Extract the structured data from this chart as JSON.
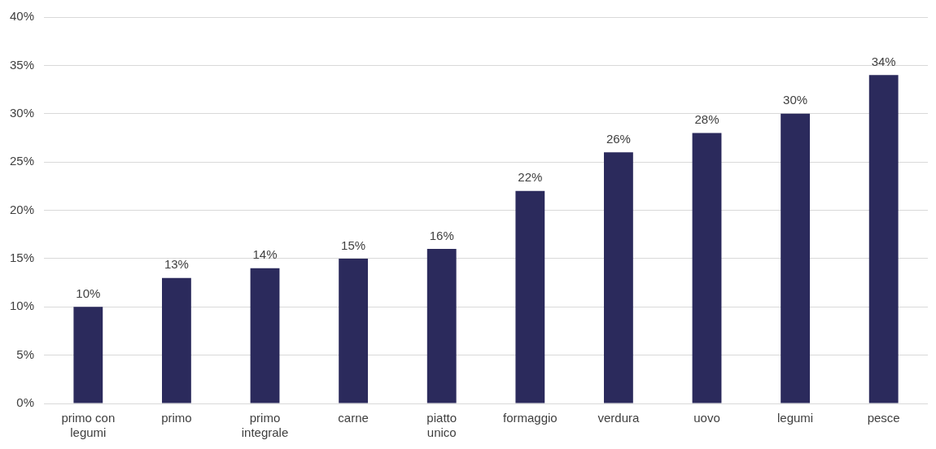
{
  "chart_data": {
    "type": "bar",
    "categories": [
      "primo con legumi",
      "primo",
      "primo integrale",
      "carne",
      "piatto unico",
      "formaggio",
      "verdura",
      "uovo",
      "legumi",
      "pesce"
    ],
    "values": [
      10,
      13,
      14,
      15,
      16,
      22,
      26,
      28,
      30,
      34
    ],
    "value_labels": [
      "10%",
      "13%",
      "14%",
      "15%",
      "16%",
      "22%",
      "26%",
      "28%",
      "30%",
      "34%"
    ],
    "color": "#2b2a5c",
    "ylim": [
      0,
      40
    ],
    "yticks": [
      {
        "value": 0,
        "label": "0%"
      },
      {
        "value": 5,
        "label": "5%"
      },
      {
        "value": 10,
        "label": "10%"
      },
      {
        "value": 15,
        "label": "15%"
      },
      {
        "value": 20,
        "label": "20%"
      },
      {
        "value": 25,
        "label": "25%"
      },
      {
        "value": 30,
        "label": "30%"
      },
      {
        "value": 35,
        "label": "35%"
      },
      {
        "value": 40,
        "label": "40%"
      }
    ],
    "grid": "y",
    "legend": false
  }
}
